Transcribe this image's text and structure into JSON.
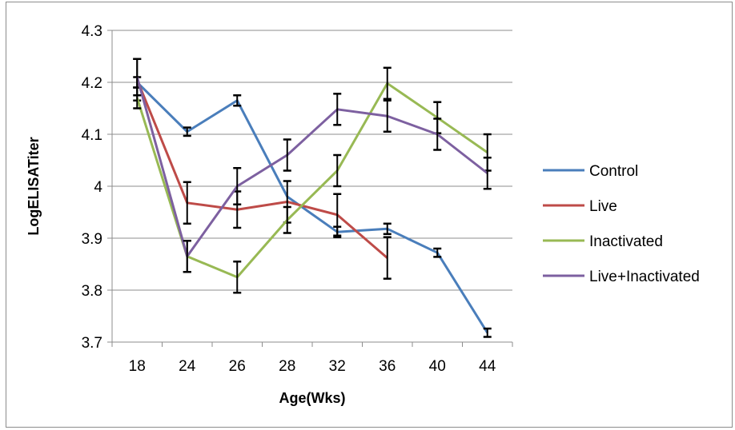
{
  "chart_data": {
    "type": "line",
    "title": "",
    "xlabel": "Age(Wks)",
    "ylabel": "LogELISATiter",
    "categories": [
      "18",
      "24",
      "26",
      "28",
      "32",
      "36",
      "40",
      "44"
    ],
    "ylim": [
      3.7,
      4.3
    ],
    "yticks": [
      "3.7",
      "3.8",
      "3.9",
      "4",
      "4.1",
      "4.2",
      "4.3"
    ],
    "grid": "horizontal",
    "legend_position": "right",
    "series": [
      {
        "name": "Control",
        "color": "#4a7ebb",
        "values": [
          4.2,
          4.105,
          4.165,
          3.98,
          3.912,
          3.918,
          3.872,
          3.718
        ],
        "errors": [
          0.01,
          0.008,
          0.01,
          null,
          0.01,
          0.01,
          0.008,
          0.008
        ]
      },
      {
        "name": "Live",
        "color": "#be4b48",
        "values": [
          4.205,
          3.968,
          3.955,
          3.97,
          3.945,
          3.862,
          null,
          null
        ],
        "errors": [
          0.04,
          0.04,
          0.035,
          0.04,
          0.04,
          0.04,
          null,
          null
        ]
      },
      {
        "name": "Inactivated",
        "color": "#98b954",
        "values": [
          4.17,
          3.865,
          3.825,
          3.935,
          4.03,
          4.198,
          4.132,
          4.065
        ],
        "errors": [
          0.02,
          0.03,
          0.03,
          0.025,
          0.03,
          0.03,
          0.03,
          0.035
        ]
      },
      {
        "name": "Live+Inactivated",
        "color": "#7d60a0",
        "values": [
          4.21,
          3.865,
          4.0,
          4.06,
          4.148,
          4.135,
          4.1,
          4.025
        ],
        "errors": [
          0.035,
          0.03,
          0.035,
          0.03,
          0.03,
          0.03,
          0.03,
          0.03
        ]
      }
    ]
  }
}
